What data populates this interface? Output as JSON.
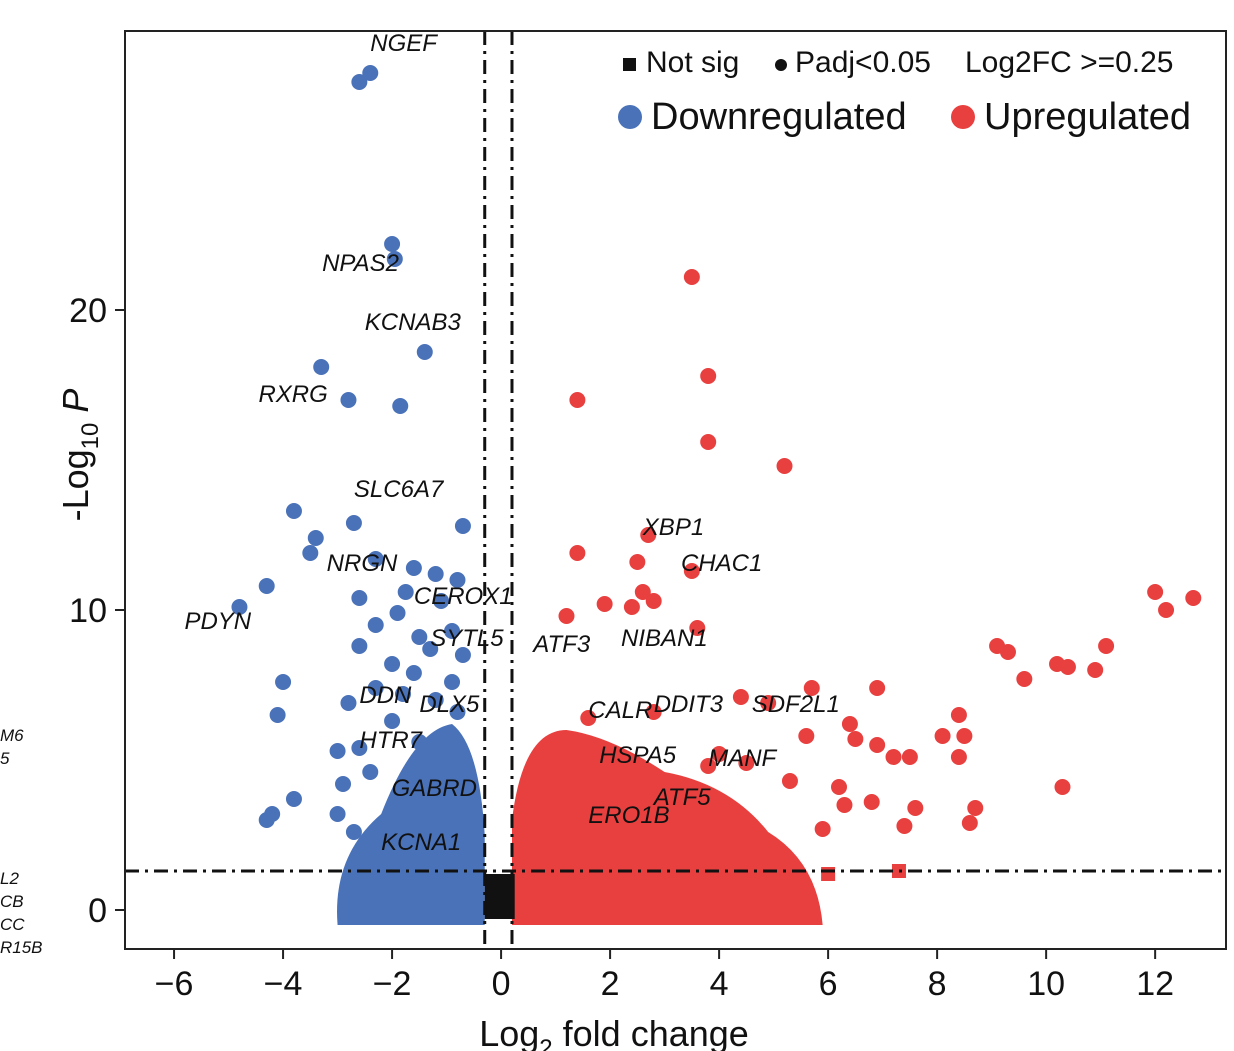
{
  "chart_data": {
    "type": "scatter",
    "title": "",
    "xlabel_main": "Log",
    "xlabel_sub": "2",
    "xlabel_rest": " fold change",
    "ylabel_main": "-Log",
    "ylabel_sub": "10",
    "ylabel_rest": " P",
    "xlim": [
      -6.9,
      13.3
    ],
    "ylim": [
      -1.3,
      29.3
    ],
    "x_ticks": [
      -6,
      -4,
      -2,
      0,
      2,
      4,
      6,
      8,
      10,
      12
    ],
    "x_tick_labels": [
      "−6",
      "−4",
      "−2",
      "0",
      "2",
      "4",
      "6",
      "8",
      "10",
      "12"
    ],
    "y_ticks": [
      0,
      10,
      20
    ],
    "y_tick_labels": [
      "0",
      "10",
      "20"
    ],
    "thresholds": {
      "log2fc": [
        -0.3,
        0.2
      ],
      "neg_log10_p": 1.3
    },
    "legend": {
      "shape_entries": [
        {
          "label": "Not sig",
          "shape": "square"
        },
        {
          "label": "Padj<0.05",
          "shape": "circle"
        },
        {
          "label": "Log2FC >=0.25",
          "shape": "none"
        }
      ],
      "color_entries": [
        {
          "label": "Downregulated",
          "color": "#4a72b8"
        },
        {
          "label": "Upregulated",
          "color": "#e8403f"
        }
      ],
      "position": "top-right"
    },
    "colors": {
      "down": "#4a72b8",
      "up": "#e8403f",
      "nonsig": "#111111"
    },
    "labeled_genes": [
      {
        "gene": "NGEF",
        "x": -2.4,
        "y": 27.9
      },
      {
        "gene": "NPAS2",
        "x": -2.0,
        "y": 22.1
      },
      {
        "gene": "KCNAB3",
        "x": -1.4,
        "y": 18.6
      },
      {
        "gene": "RXRG",
        "x": -2.8,
        "y": 17.1
      },
      {
        "gene": "SLC6A7",
        "x": -2.7,
        "y": 12.9
      },
      {
        "gene": "NRGN",
        "x": -3.2,
        "y": 11.3
      },
      {
        "gene": "CEROX1",
        "x": -1.6,
        "y": 10.2
      },
      {
        "gene": "PDYN",
        "x": -4.8,
        "y": 10.1
      },
      {
        "gene": "SYTL5",
        "x": -1.3,
        "y": 8.8
      },
      {
        "gene": "DDN",
        "x": -2.6,
        "y": 6.9
      },
      {
        "gene": "DLX5",
        "x": -1.5,
        "y": 6.6
      },
      {
        "gene": "HTR7",
        "x": -2.6,
        "y": 5.4
      },
      {
        "gene": "GABRD",
        "x": -1.0,
        "y": 3.8
      },
      {
        "gene": "KCNA1",
        "x": -2.2,
        "y": 2.0
      },
      {
        "gene": "XBP1",
        "x": 2.6,
        "y": 12.5
      },
      {
        "gene": "CHAC1",
        "x": 3.3,
        "y": 11.3
      },
      {
        "gene": "ATF3",
        "x": 1.6,
        "y": 8.6
      },
      {
        "gene": "NIBAN1",
        "x": 2.2,
        "y": 8.8
      },
      {
        "gene": "CALR",
        "x": 1.6,
        "y": 6.4
      },
      {
        "gene": "DDIT3",
        "x": 2.8,
        "y": 6.6
      },
      {
        "gene": "SDF2L1",
        "x": 4.6,
        "y": 6.6
      },
      {
        "gene": "HSPA5",
        "x": 1.8,
        "y": 4.9
      },
      {
        "gene": "MANF",
        "x": 3.8,
        "y": 4.8
      },
      {
        "gene": "ATF5",
        "x": 2.8,
        "y": 3.5
      },
      {
        "gene": "ERO1B",
        "x": 1.6,
        "y": 2.9
      }
    ],
    "significant_points": [
      {
        "x": -2.6,
        "y": 27.6
      },
      {
        "x": -2.4,
        "y": 27.9
      },
      {
        "x": -2.0,
        "y": 22.2
      },
      {
        "x": -1.95,
        "y": 21.7
      },
      {
        "x": -1.4,
        "y": 18.6
      },
      {
        "x": -3.3,
        "y": 18.1
      },
      {
        "x": -2.8,
        "y": 17.0
      },
      {
        "x": -1.85,
        "y": 16.8
      },
      {
        "x": -3.8,
        "y": 13.3
      },
      {
        "x": -2.7,
        "y": 12.9
      },
      {
        "x": -0.7,
        "y": 12.8
      },
      {
        "x": -3.4,
        "y": 12.4
      },
      {
        "x": -3.5,
        "y": 11.9
      },
      {
        "x": -2.3,
        "y": 11.7
      },
      {
        "x": -1.6,
        "y": 11.4
      },
      {
        "x": -1.2,
        "y": 11.2
      },
      {
        "x": -0.8,
        "y": 11.0
      },
      {
        "x": -4.3,
        "y": 10.8
      },
      {
        "x": -1.75,
        "y": 10.6
      },
      {
        "x": -2.6,
        "y": 10.4
      },
      {
        "x": -4.8,
        "y": 10.1
      },
      {
        "x": -1.1,
        "y": 10.3
      },
      {
        "x": -1.9,
        "y": 9.9
      },
      {
        "x": -2.3,
        "y": 9.5
      },
      {
        "x": -1.5,
        "y": 9.1
      },
      {
        "x": -0.9,
        "y": 9.3
      },
      {
        "x": -2.6,
        "y": 8.8
      },
      {
        "x": -1.3,
        "y": 8.7
      },
      {
        "x": -0.7,
        "y": 8.5
      },
      {
        "x": -2.0,
        "y": 8.2
      },
      {
        "x": -1.6,
        "y": 7.9
      },
      {
        "x": -0.9,
        "y": 7.6
      },
      {
        "x": -4.0,
        "y": 7.6
      },
      {
        "x": -2.3,
        "y": 7.4
      },
      {
        "x": -1.8,
        "y": 7.2
      },
      {
        "x": -1.2,
        "y": 7.0
      },
      {
        "x": -4.1,
        "y": 6.5
      },
      {
        "x": -2.8,
        "y": 6.9
      },
      {
        "x": -2.0,
        "y": 6.3
      },
      {
        "x": -0.8,
        "y": 6.6
      },
      {
        "x": -3.0,
        "y": 5.3
      },
      {
        "x": -2.6,
        "y": 5.4
      },
      {
        "x": -1.5,
        "y": 5.6
      },
      {
        "x": -2.4,
        "y": 4.6
      },
      {
        "x": -3.8,
        "y": 3.7
      },
      {
        "x": -2.9,
        "y": 4.2
      },
      {
        "x": -4.3,
        "y": 3.0
      },
      {
        "x": -4.2,
        "y": 3.2
      },
      {
        "x": -3.0,
        "y": 3.2
      },
      {
        "x": -2.7,
        "y": 2.6
      },
      {
        "x": -2.4,
        "y": 2.1
      },
      {
        "x": -1.0,
        "y": 3.8
      },
      {
        "x": 3.5,
        "y": 21.1
      },
      {
        "x": 3.8,
        "y": 17.8
      },
      {
        "x": 1.4,
        "y": 17.0
      },
      {
        "x": 3.8,
        "y": 15.6
      },
      {
        "x": 5.2,
        "y": 14.8
      },
      {
        "x": 2.7,
        "y": 12.5
      },
      {
        "x": 1.4,
        "y": 11.9
      },
      {
        "x": 2.5,
        "y": 11.6
      },
      {
        "x": 3.5,
        "y": 11.3
      },
      {
        "x": 2.6,
        "y": 10.6
      },
      {
        "x": 2.8,
        "y": 10.3
      },
      {
        "x": 2.4,
        "y": 10.1
      },
      {
        "x": 1.9,
        "y": 10.2
      },
      {
        "x": 1.2,
        "y": 9.8
      },
      {
        "x": 3.6,
        "y": 9.4
      },
      {
        "x": 12.0,
        "y": 10.6
      },
      {
        "x": 12.2,
        "y": 10.0
      },
      {
        "x": 12.7,
        "y": 10.4
      },
      {
        "x": 9.1,
        "y": 8.8
      },
      {
        "x": 9.3,
        "y": 8.6
      },
      {
        "x": 11.1,
        "y": 8.8
      },
      {
        "x": 10.2,
        "y": 8.2
      },
      {
        "x": 10.4,
        "y": 8.1
      },
      {
        "x": 10.9,
        "y": 8.0
      },
      {
        "x": 9.6,
        "y": 7.7
      },
      {
        "x": 5.7,
        "y": 7.4
      },
      {
        "x": 6.9,
        "y": 7.4
      },
      {
        "x": 4.4,
        "y": 7.1
      },
      {
        "x": 4.9,
        "y": 6.9
      },
      {
        "x": 8.4,
        "y": 6.5
      },
      {
        "x": 6.4,
        "y": 6.2
      },
      {
        "x": 5.6,
        "y": 5.8
      },
      {
        "x": 8.1,
        "y": 5.8
      },
      {
        "x": 8.5,
        "y": 5.8
      },
      {
        "x": 6.5,
        "y": 5.7
      },
      {
        "x": 6.9,
        "y": 5.5
      },
      {
        "x": 7.2,
        "y": 5.1
      },
      {
        "x": 7.5,
        "y": 5.1
      },
      {
        "x": 8.4,
        "y": 5.1
      },
      {
        "x": 4.0,
        "y": 5.2
      },
      {
        "x": 4.5,
        "y": 4.9
      },
      {
        "x": 5.3,
        "y": 4.3
      },
      {
        "x": 6.2,
        "y": 4.1
      },
      {
        "x": 6.8,
        "y": 3.6
      },
      {
        "x": 6.3,
        "y": 3.5
      },
      {
        "x": 7.6,
        "y": 3.4
      },
      {
        "x": 8.7,
        "y": 3.4
      },
      {
        "x": 10.3,
        "y": 4.1
      },
      {
        "x": 7.4,
        "y": 2.8
      },
      {
        "x": 8.6,
        "y": 2.9
      },
      {
        "x": 5.9,
        "y": 2.7
      },
      {
        "x": 2.8,
        "y": 3.5
      },
      {
        "x": 1.6,
        "y": 6.4
      },
      {
        "x": 2.8,
        "y": 6.6
      },
      {
        "x": 1.8,
        "y": 4.9
      },
      {
        "x": 3.8,
        "y": 4.8
      },
      {
        "x": 1.6,
        "y": 2.9
      }
    ],
    "notsig_points": [
      {
        "x": -2.7,
        "y": 0.4
      },
      {
        "x": -2.0,
        "y": 0.5
      },
      {
        "x": -1.6,
        "y": 0.3
      },
      {
        "x": -1.1,
        "y": 0.4
      },
      {
        "x": -0.6,
        "y": 0.2
      },
      {
        "x": 5.3,
        "y": 1.2
      },
      {
        "x": 6.0,
        "y": 1.2
      },
      {
        "x": 7.3,
        "y": 1.3
      },
      {
        "x": 4.4,
        "y": 0.9
      },
      {
        "x": 3.6,
        "y": 0.8
      }
    ]
  },
  "edge_text": [
    "M6",
    "5",
    "L2",
    "CB",
    "CC",
    "R15B"
  ]
}
